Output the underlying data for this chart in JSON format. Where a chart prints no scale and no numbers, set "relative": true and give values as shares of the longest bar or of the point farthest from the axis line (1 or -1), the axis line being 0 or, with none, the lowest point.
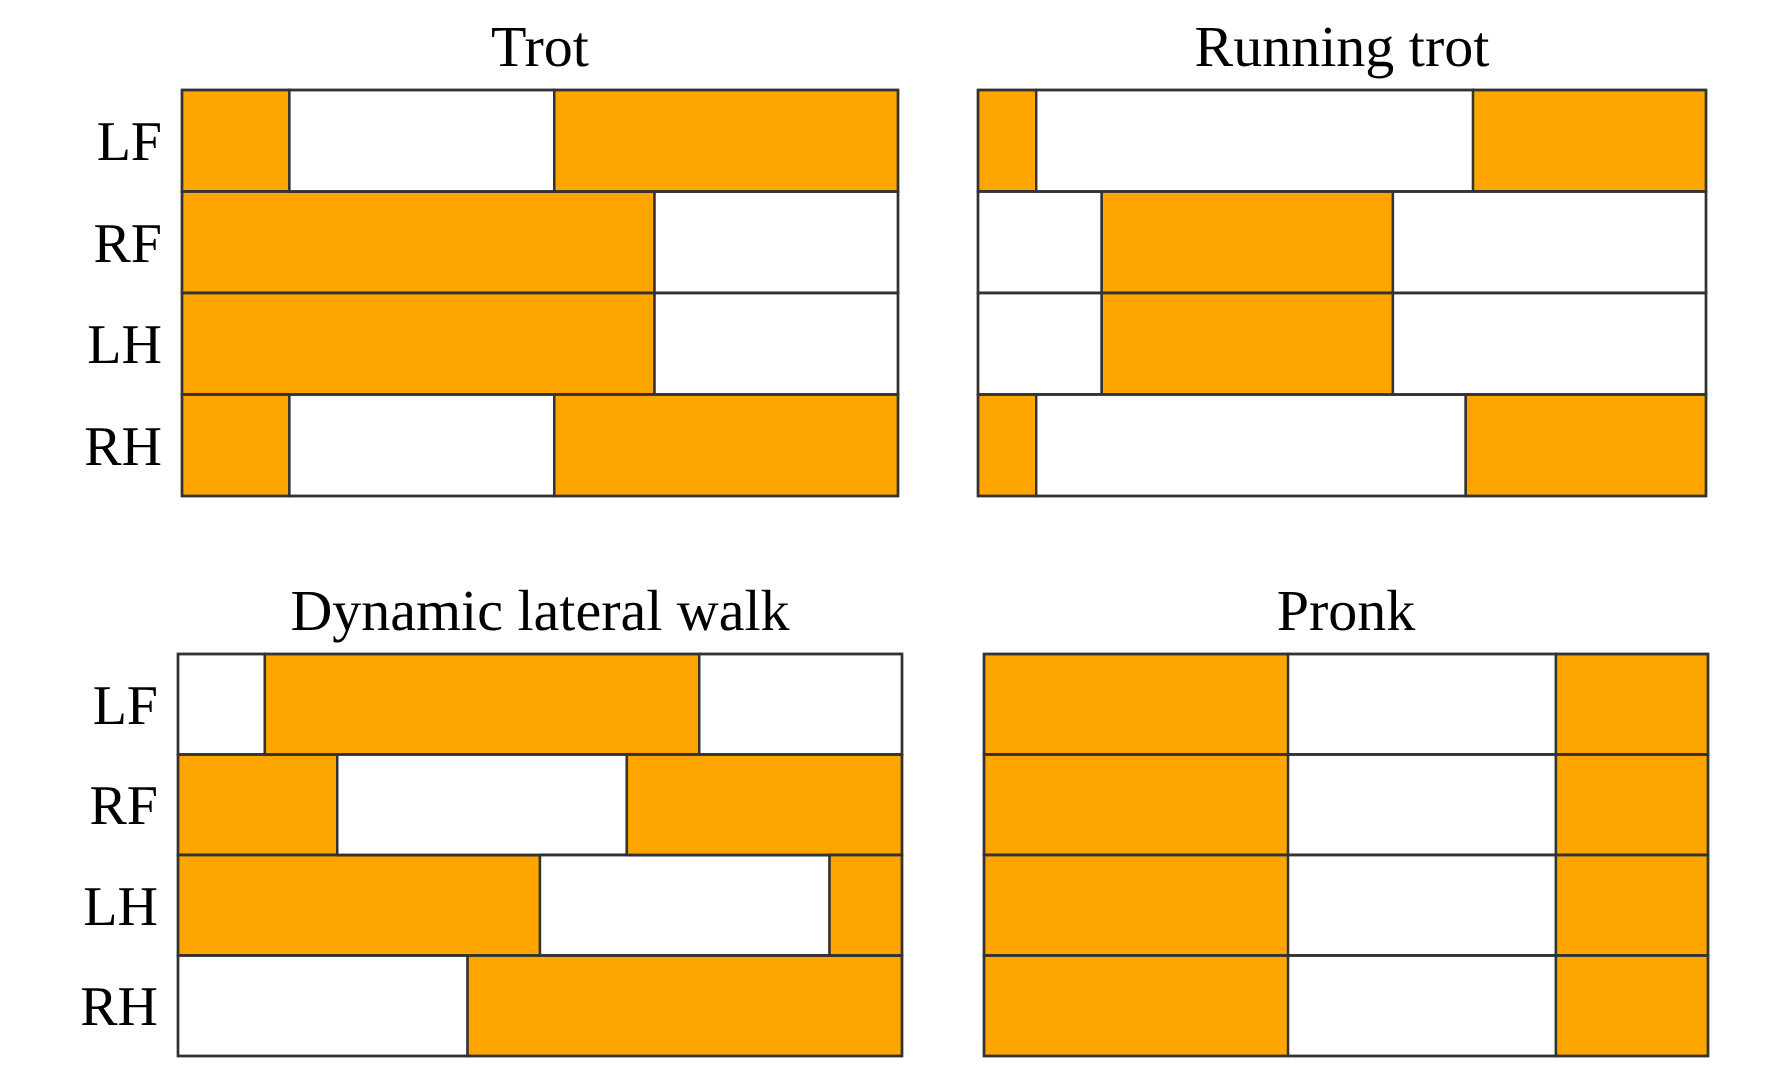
{
  "chart_data": [
    {
      "type": "bar",
      "title": "Trot",
      "orientation": "horizontal",
      "stacked": true,
      "relative": true,
      "categories": [
        "LF",
        "RF",
        "LH",
        "RH"
      ],
      "series": [
        {
          "colors": [
            "#ffa500",
            "#ffa500",
            "#ffa500",
            "#ffa500"
          ],
          "values": [
            0.15,
            0.66,
            0.66,
            0.15
          ]
        },
        {
          "colors": [
            "#ffffff",
            "#ffffff",
            "#ffffff",
            "#ffffff"
          ],
          "values": [
            0.37,
            0.34,
            0.34,
            0.37
          ]
        },
        {
          "colors": [
            "#ffa500",
            null,
            null,
            "#ffa500"
          ],
          "values": [
            0.48,
            null,
            null,
            0.48
          ]
        }
      ]
    },
    {
      "type": "bar",
      "title": "Running trot",
      "orientation": "horizontal",
      "stacked": true,
      "relative": true,
      "categories": [
        null,
        null,
        null,
        null
      ],
      "series": [
        {
          "colors": [
            "#ffa500",
            "#ffffff",
            "#ffffff",
            "#ffa500"
          ],
          "values": [
            0.08,
            0.17,
            0.17,
            0.08
          ]
        },
        {
          "colors": [
            "#ffffff",
            "#ffa500",
            "#ffa500",
            "#ffffff"
          ],
          "values": [
            0.6,
            0.4,
            0.4,
            0.59
          ]
        },
        {
          "colors": [
            "#ffa500",
            "#ffffff",
            "#ffffff",
            "#ffa500"
          ],
          "values": [
            0.32,
            0.43,
            0.43,
            0.33
          ]
        }
      ]
    },
    {
      "type": "bar",
      "title": "Dynamic lateral walk",
      "orientation": "horizontal",
      "stacked": true,
      "relative": true,
      "categories": [
        "LF",
        "RF",
        "LH",
        "RH"
      ],
      "series": [
        {
          "colors": [
            "#ffffff",
            "#ffa500",
            "#ffa500",
            "#ffffff"
          ],
          "values": [
            0.12,
            0.22,
            0.5,
            0.4
          ]
        },
        {
          "colors": [
            "#ffa500",
            "#ffffff",
            "#ffffff",
            "#ffa500"
          ],
          "values": [
            0.6,
            0.4,
            0.4,
            0.6
          ]
        },
        {
          "colors": [
            "#ffffff",
            "#ffa500",
            "#ffa500",
            null
          ],
          "values": [
            0.28,
            0.38,
            0.1,
            null
          ]
        }
      ]
    },
    {
      "type": "bar",
      "title": "Pronk",
      "orientation": "horizontal",
      "stacked": true,
      "relative": true,
      "categories": [
        null,
        null,
        null,
        null
      ],
      "series": [
        {
          "colors": [
            "#ffa500",
            "#ffa500",
            "#ffa500",
            "#ffa500"
          ],
          "values": [
            0.42,
            0.42,
            0.42,
            0.42
          ]
        },
        {
          "colors": [
            "#ffffff",
            "#ffffff",
            "#ffffff",
            "#ffffff"
          ],
          "values": [
            0.37,
            0.37,
            0.37,
            0.37
          ]
        },
        {
          "colors": [
            "#ffa500",
            "#ffa500",
            "#ffa500",
            "#ffa500"
          ],
          "values": [
            0.21,
            0.21,
            0.21,
            0.21
          ]
        }
      ]
    }
  ]
}
